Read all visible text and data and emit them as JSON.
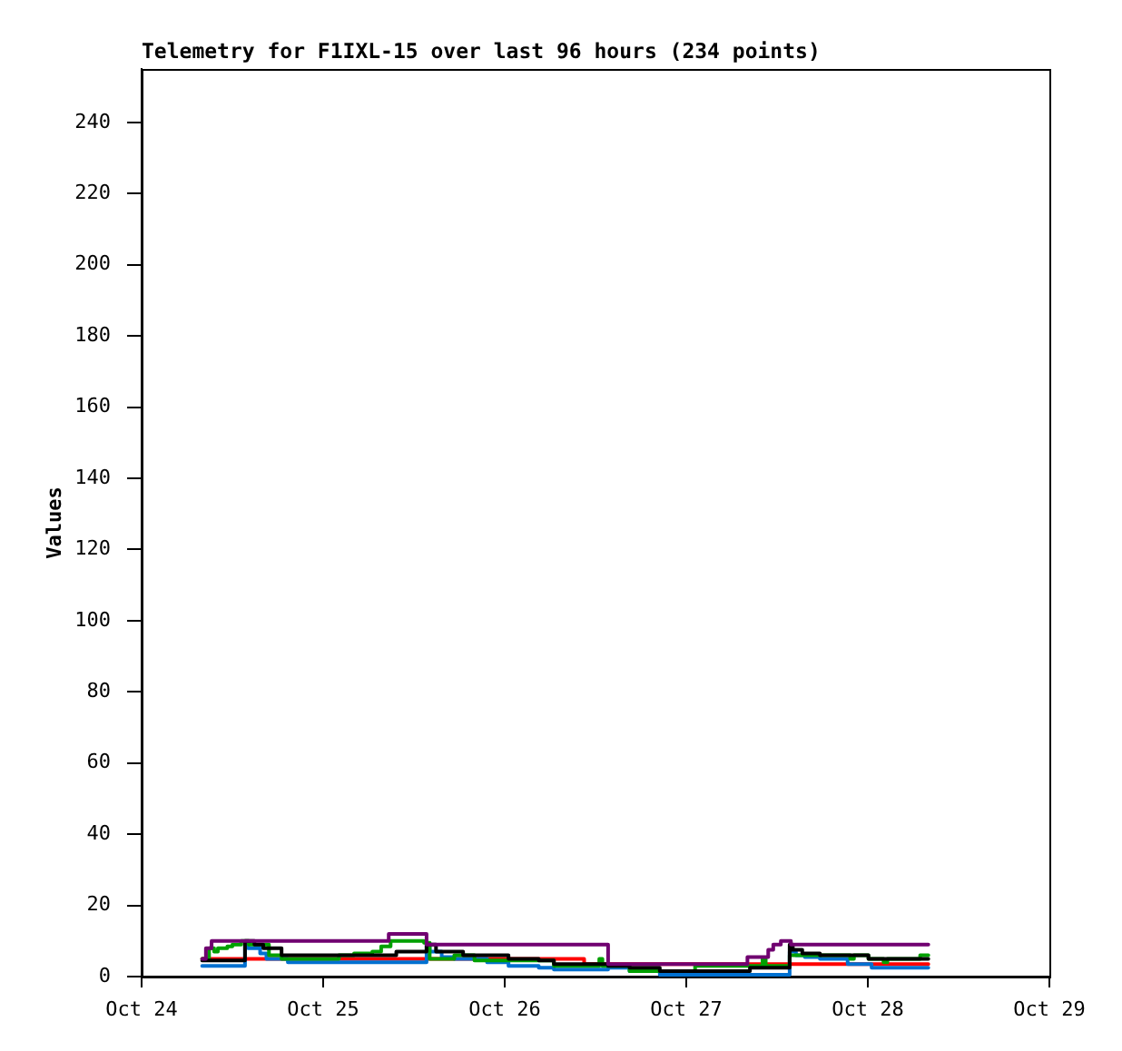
{
  "chart_data": {
    "type": "step",
    "title": "Telemetry for F1IXL-15 over last 96 hours (234 points)",
    "ylabel": "Values",
    "xlim": [
      "--10-24",
      "--10-29"
    ],
    "xticks": [
      {
        "value": "--10-24",
        "label": "Oct 24"
      },
      {
        "value": "--10-25",
        "label": "Oct 25"
      },
      {
        "value": "--10-26",
        "label": "Oct 26"
      },
      {
        "value": "--10-27",
        "label": "Oct 27"
      },
      {
        "value": "--10-28",
        "label": "Oct 28"
      },
      {
        "value": "--10-29",
        "label": "Oct 29"
      }
    ],
    "ylim": [
      0,
      255
    ],
    "yticks": [
      0,
      20,
      40,
      60,
      80,
      100,
      120,
      140,
      160,
      180,
      200,
      220,
      240
    ],
    "series": [
      {
        "color": "#ff0000",
        "x": [
          "--10-24T08:00",
          "--10-26T10:30",
          "--10-28T08:00"
        ],
        "values": [
          5,
          3.5,
          3.5
        ]
      },
      {
        "color": "#0070d0",
        "x": [
          "--10-24T08:00",
          "--10-24T13:40",
          "--10-24T14:05",
          "--10-24T15:40",
          "--10-24T16:30",
          "--10-24T19:20",
          "--10-25T13:40",
          "--10-25T14:05",
          "--10-25T15:40",
          "--10-25T17:20",
          "--10-25T21:40",
          "--10-26T00:30",
          "--10-26T04:30",
          "--10-26T06:30",
          "--10-26T13:40",
          "--10-26T16:30",
          "--10-26T20:30",
          "--10-27T13:40",
          "--10-27T14:30",
          "--10-27T15:40",
          "--10-27T17:40",
          "--10-27T21:20",
          "--10-28T00:30",
          "--10-28T08:00"
        ],
        "values": [
          3,
          9,
          8,
          6.5,
          5,
          4,
          9,
          7,
          5.5,
          5,
          4,
          3,
          2.5,
          2,
          2.5,
          1.5,
          0.5,
          7,
          6,
          5.5,
          5,
          3.5,
          2.5,
          2.5
        ]
      },
      {
        "color": "#00a000",
        "x": [
          "--10-24T08:00",
          "--10-24T08:55",
          "--10-24T09:35",
          "--10-24T10:05",
          "--10-24T11:20",
          "--10-24T12:00",
          "--10-24T13:10",
          "--10-24T14:10",
          "--10-24T16:50",
          "--10-24T18:30",
          "--10-25T02:05",
          "--10-25T04:05",
          "--10-25T06:30",
          "--10-25T07:40",
          "--10-25T08:55",
          "--10-25T13:20",
          "--10-25T14:05",
          "--10-25T17:20",
          "--10-25T20:00",
          "--10-26T06:30",
          "--10-26T12:30",
          "--10-26T12:55",
          "--10-26T16:30",
          "--10-27T01:10",
          "--10-27T10:05",
          "--10-27T10:30",
          "--10-27T13:40",
          "--10-27T21:40",
          "--10-27T22:10",
          "--10-28T00:05",
          "--10-28T02:05",
          "--10-28T02:35",
          "--10-28T06:55",
          "--10-28T08:00"
        ],
        "values": [
          5,
          8,
          7,
          8,
          8.5,
          9,
          10,
          9,
          6,
          5,
          6,
          6.5,
          7,
          8.5,
          10,
          9.5,
          5,
          6,
          4.5,
          3,
          5,
          3,
          1.5,
          3,
          5,
          3,
          6,
          5,
          6,
          5,
          4,
          5,
          6,
          6
        ]
      },
      {
        "color": "#000000",
        "x": [
          "--10-24T08:00",
          "--10-24T13:40",
          "--10-24T14:55",
          "--10-24T16:05",
          "--10-24T18:30",
          "--10-25T09:40",
          "--10-25T13:40",
          "--10-25T14:55",
          "--10-25T18:30",
          "--10-26T00:30",
          "--10-26T04:30",
          "--10-26T06:30",
          "--10-26T13:40",
          "--10-26T16:30",
          "--10-26T20:30",
          "--10-27T08:25",
          "--10-27T13:40",
          "--10-27T14:05",
          "--10-27T15:20",
          "--10-27T17:40",
          "--10-28T00:05",
          "--10-28T08:00"
        ],
        "values": [
          4.5,
          10,
          9,
          8,
          6,
          7,
          9,
          7,
          6,
          5,
          4.5,
          3.5,
          3,
          2.5,
          1.5,
          2.5,
          9,
          7.5,
          6.5,
          6,
          5,
          5
        ]
      },
      {
        "color": "#700070",
        "x": [
          "--10-24T08:00",
          "--10-24T08:30",
          "--10-24T09:15",
          "--10-25T08:40",
          "--10-25T13:40",
          "--10-26T13:40",
          "--10-27T08:05",
          "--10-27T10:50",
          "--10-27T11:30",
          "--10-27T12:30",
          "--10-27T13:50",
          "--10-28T08:00"
        ],
        "values": [
          5,
          8,
          10,
          12,
          9,
          3.5,
          5.5,
          7.5,
          9,
          10,
          9,
          9
        ]
      }
    ]
  }
}
